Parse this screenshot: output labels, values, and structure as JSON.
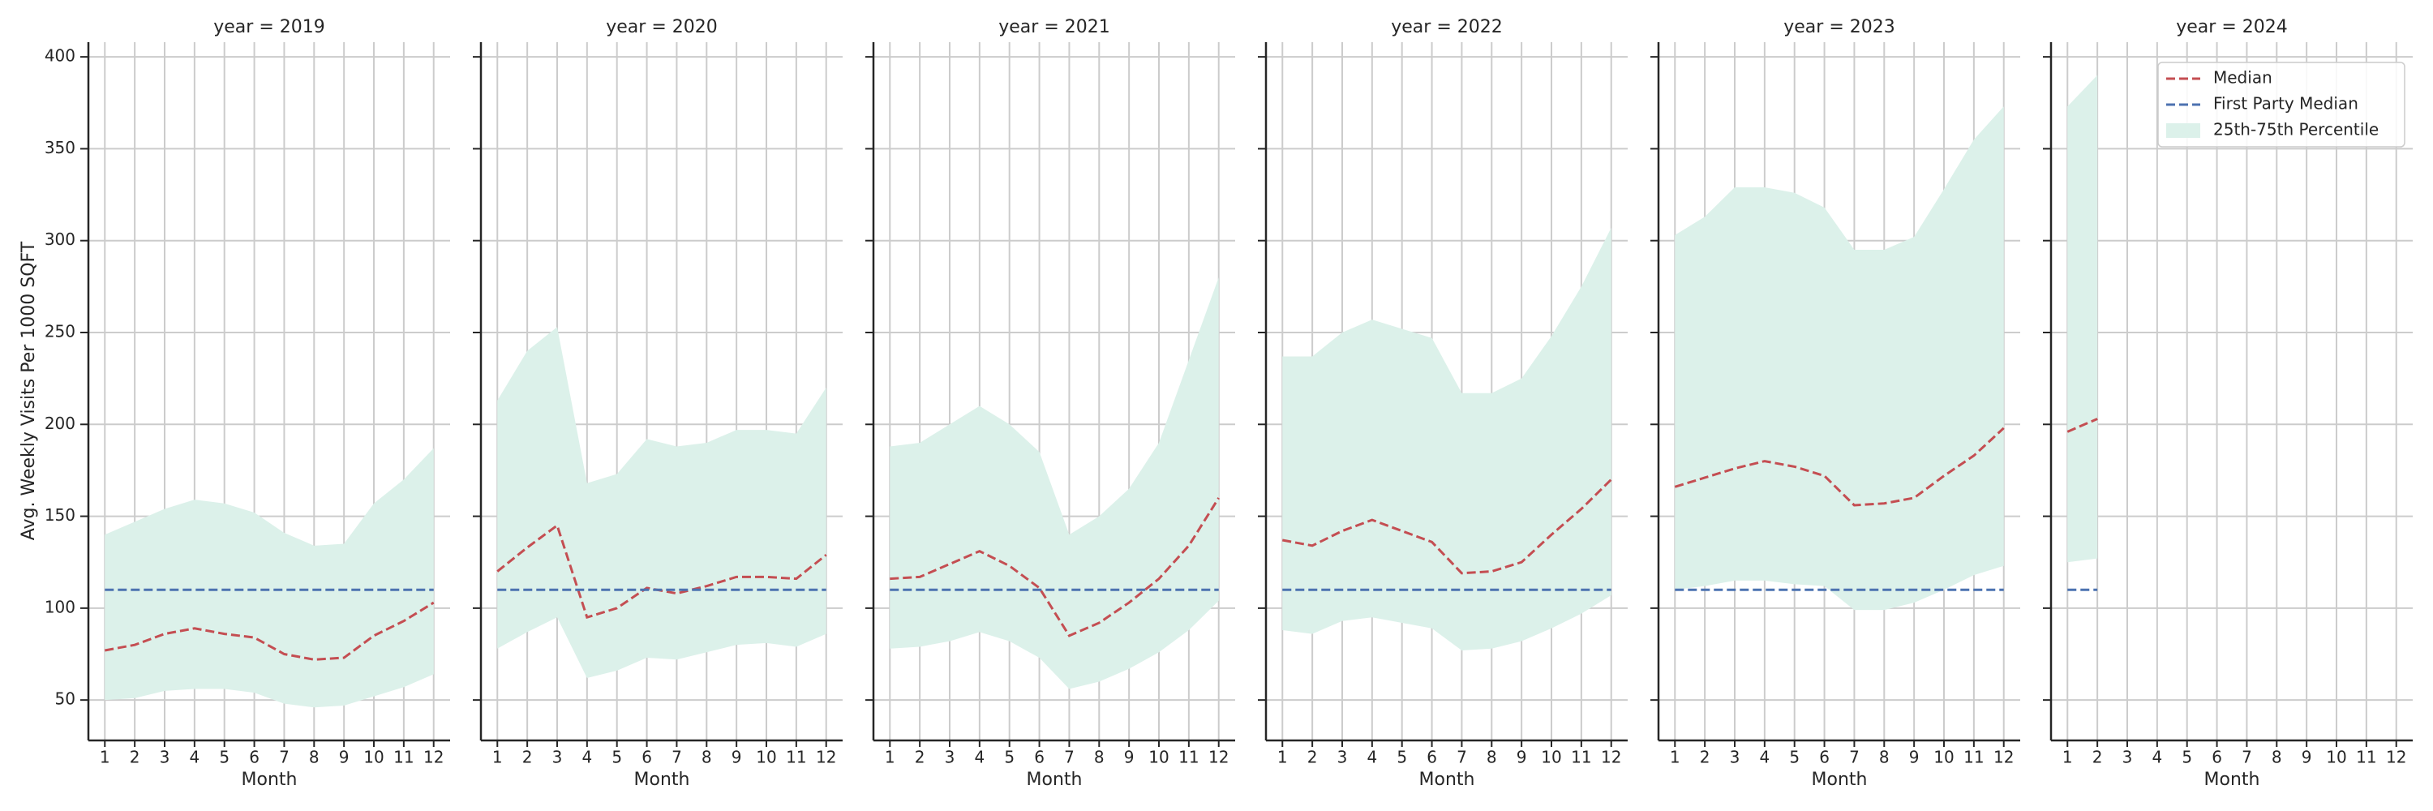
{
  "chart_data": {
    "type": "line",
    "ylabel": "Avg. Weekly Visits Per 1000 SQFT",
    "xlabel": "Month",
    "x": [
      1,
      2,
      3,
      4,
      5,
      6,
      7,
      8,
      9,
      10,
      11,
      12
    ],
    "xlim": [
      0.45,
      12.55
    ],
    "xticks": [
      1,
      2,
      3,
      4,
      5,
      6,
      7,
      8,
      9,
      10,
      11,
      12
    ],
    "ylim": [
      28,
      408
    ],
    "yticks": [
      50,
      100,
      150,
      200,
      250,
      300,
      350,
      400
    ],
    "grid": true,
    "legend": "upper right",
    "series": [
      {
        "name": "Median",
        "color": "#c44e52"
      },
      {
        "name": "First Party Median",
        "color": "#4c72b0"
      }
    ],
    "band": {
      "name": "25th-75th Percentile",
      "color": "#dcf1ea"
    },
    "panels": [
      {
        "title": "year = 2019",
        "values": [
          [
            77,
            80,
            86,
            89,
            86,
            84,
            75,
            72,
            73,
            85,
            93,
            103
          ],
          [
            110,
            110,
            110,
            110,
            110,
            110,
            110,
            110,
            110,
            110,
            110,
            110
          ]
        ],
        "low": [
          50,
          51,
          55,
          56,
          56,
          54,
          48,
          46,
          47,
          52,
          57,
          64
        ],
        "high": [
          140,
          147,
          154,
          159,
          157,
          152,
          141,
          134,
          135,
          157,
          170,
          187
        ]
      },
      {
        "title": "year = 2020",
        "values": [
          [
            120,
            133,
            145,
            95,
            100,
            111,
            108,
            112,
            117,
            117,
            116,
            129
          ],
          [
            110,
            110,
            110,
            110,
            110,
            110,
            110,
            110,
            110,
            110,
            110,
            110
          ]
        ],
        "low": [
          78,
          87,
          95,
          62,
          66,
          73,
          72,
          76,
          80,
          81,
          79,
          86
        ],
        "high": [
          213,
          240,
          253,
          168,
          173,
          192,
          188,
          190,
          197,
          197,
          195,
          220
        ]
      },
      {
        "title": "year = 2021",
        "values": [
          [
            116,
            117,
            124,
            131,
            123,
            111,
            85,
            92,
            103,
            116,
            134,
            160
          ],
          [
            110,
            110,
            110,
            110,
            110,
            110,
            110,
            110,
            110,
            110,
            110,
            110
          ]
        ],
        "low": [
          78,
          79,
          82,
          87,
          82,
          73,
          56,
          60,
          67,
          76,
          88,
          104
        ],
        "high": [
          188,
          190,
          200,
          210,
          200,
          185,
          140,
          150,
          165,
          190,
          235,
          280
        ]
      },
      {
        "title": "year = 2022",
        "values": [
          [
            137,
            134,
            142,
            148,
            142,
            136,
            119,
            120,
            125,
            140,
            154,
            170
          ],
          [
            110,
            110,
            110,
            110,
            110,
            110,
            110,
            110,
            110,
            110,
            110,
            110
          ]
        ],
        "low": [
          88,
          86,
          93,
          95,
          92,
          89,
          77,
          78,
          82,
          89,
          97,
          107
        ],
        "high": [
          237,
          237,
          250,
          257,
          252,
          247,
          217,
          217,
          225,
          248,
          275,
          307
        ]
      },
      {
        "title": "year = 2023",
        "values": [
          [
            166,
            171,
            176,
            180,
            177,
            172,
            156,
            157,
            160,
            172,
            183,
            198
          ],
          [
            110,
            110,
            110,
            110,
            110,
            110,
            110,
            110,
            110,
            110,
            110,
            110
          ]
        ],
        "low": [
          110,
          112,
          115,
          115,
          113,
          112,
          99,
          99,
          103,
          110,
          118,
          123
        ],
        "high": [
          303,
          313,
          329,
          329,
          326,
          318,
          295,
          295,
          302,
          328,
          355,
          373
        ]
      },
      {
        "title": "year = 2024",
        "values": [
          [
            196,
            203,
            null,
            null,
            null,
            null,
            null,
            null,
            null,
            null,
            null,
            null
          ],
          [
            110,
            110,
            null,
            null,
            null,
            null,
            null,
            null,
            null,
            null,
            null,
            null
          ]
        ],
        "low": [
          125,
          127,
          null,
          null,
          null,
          null,
          null,
          null,
          null,
          null,
          null,
          null
        ],
        "high": [
          373,
          390,
          null,
          null,
          null,
          null,
          null,
          null,
          null,
          null,
          null,
          null
        ]
      }
    ]
  }
}
